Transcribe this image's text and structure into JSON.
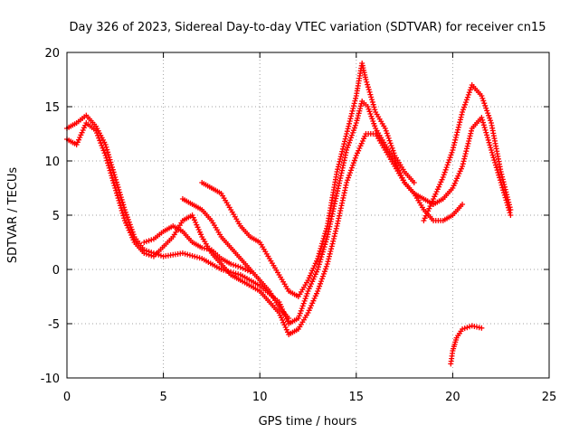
{
  "chart_data": {
    "type": "scatter",
    "title": "Day 326 of 2023, Sidereal Day-to-day VTEC variation (SDTVAR) for receiver cn15",
    "xlabel": "GPS time / hours",
    "ylabel": "SDTVAR / TECUs",
    "xlim": [
      0,
      25
    ],
    "ylim": [
      -10,
      20
    ],
    "xticks": [
      "0",
      "5",
      "10",
      "15",
      "20",
      "25"
    ],
    "yticks": [
      "-10",
      "-5",
      "0",
      "5",
      "10",
      "15",
      "20"
    ],
    "grid": true,
    "marker": "plus",
    "marker_color": "#ff0000",
    "series": [
      {
        "name": "trace-1",
        "points": [
          [
            0.0,
            13.0
          ],
          [
            0.5,
            13.5
          ],
          [
            1.0,
            14.2
          ],
          [
            1.5,
            13.2
          ],
          [
            2.0,
            11.5
          ],
          [
            2.5,
            8.5
          ],
          [
            3.0,
            5.5
          ],
          [
            3.5,
            3.0
          ],
          [
            4.0,
            1.8
          ],
          [
            4.5,
            1.5
          ],
          [
            5.0,
            1.2
          ],
          [
            6.0,
            1.5
          ],
          [
            7.0,
            1.0
          ],
          [
            8.0,
            0.0
          ],
          [
            9.0,
            -0.5
          ],
          [
            10.0,
            -1.5
          ],
          [
            11.0,
            -3.0
          ],
          [
            11.5,
            -5.0
          ],
          [
            12.0,
            -4.5
          ],
          [
            12.5,
            -2.0
          ],
          [
            13.0,
            0.0
          ],
          [
            13.5,
            3.0
          ],
          [
            14.0,
            7.0
          ],
          [
            14.5,
            11.0
          ],
          [
            15.0,
            13.5
          ],
          [
            15.3,
            15.5
          ],
          [
            15.6,
            15.0
          ],
          [
            16.0,
            13.0
          ],
          [
            16.5,
            11.5
          ],
          [
            17.0,
            10.0
          ],
          [
            17.5,
            8.0
          ],
          [
            18.0,
            7.0
          ],
          [
            18.5,
            6.5
          ],
          [
            19.0,
            6.0
          ],
          [
            19.5,
            6.5
          ],
          [
            20.0,
            7.5
          ],
          [
            20.5,
            9.5
          ],
          [
            21.0,
            13.0
          ],
          [
            21.5,
            14.0
          ],
          [
            22.0,
            11.0
          ],
          [
            22.5,
            8.0
          ],
          [
            23.0,
            5.0
          ]
        ]
      },
      {
        "name": "trace-2",
        "points": [
          [
            0.0,
            12.0
          ],
          [
            0.5,
            11.5
          ],
          [
            1.0,
            13.5
          ],
          [
            1.5,
            12.8
          ],
          [
            2.0,
            10.5
          ],
          [
            2.5,
            7.5
          ],
          [
            3.0,
            4.5
          ],
          [
            3.5,
            2.5
          ],
          [
            4.0,
            1.5
          ],
          [
            4.5,
            1.2
          ],
          [
            5.5,
            3.0
          ],
          [
            6.0,
            4.5
          ],
          [
            6.5,
            5.0
          ],
          [
            7.0,
            3.0
          ],
          [
            7.5,
            1.5
          ],
          [
            8.0,
            0.5
          ],
          [
            8.5,
            -0.5
          ],
          [
            9.0,
            -1.0
          ],
          [
            10.0,
            -2.0
          ],
          [
            10.5,
            -3.0
          ],
          [
            11.0,
            -4.0
          ],
          [
            11.5,
            -6.0
          ],
          [
            12.0,
            -5.5
          ],
          [
            12.5,
            -4.0
          ],
          [
            13.0,
            -2.0
          ],
          [
            13.5,
            0.5
          ],
          [
            14.0,
            4.0
          ],
          [
            14.5,
            8.0
          ],
          [
            15.0,
            10.5
          ],
          [
            15.5,
            12.5
          ],
          [
            16.0,
            12.5
          ],
          [
            16.5,
            11.0
          ],
          [
            17.0,
            9.5
          ],
          [
            17.5,
            8.0
          ],
          [
            18.0,
            7.0
          ],
          [
            18.5,
            5.5
          ],
          [
            19.0,
            4.5
          ],
          [
            19.5,
            4.5
          ],
          [
            20.0,
            5.0
          ],
          [
            20.5,
            6.0
          ]
        ]
      },
      {
        "name": "trace-3",
        "points": [
          [
            7.0,
            8.0
          ],
          [
            7.5,
            7.5
          ],
          [
            8.0,
            7.0
          ],
          [
            8.5,
            5.5
          ],
          [
            9.0,
            4.0
          ],
          [
            9.5,
            3.0
          ],
          [
            10.0,
            2.5
          ],
          [
            10.5,
            1.0
          ],
          [
            11.0,
            -0.5
          ],
          [
            11.5,
            -2.0
          ],
          [
            12.0,
            -2.5
          ],
          [
            12.5,
            -1.0
          ],
          [
            13.0,
            1.0
          ],
          [
            13.5,
            4.0
          ],
          [
            14.0,
            9.0
          ],
          [
            14.5,
            12.5
          ],
          [
            15.0,
            16.0
          ],
          [
            15.3,
            19.0
          ],
          [
            15.5,
            17.5
          ],
          [
            16.0,
            14.5
          ],
          [
            16.5,
            13.0
          ],
          [
            17.0,
            10.5
          ],
          [
            17.5,
            9.0
          ],
          [
            18.0,
            8.0
          ]
        ]
      },
      {
        "name": "trace-4",
        "points": [
          [
            6.0,
            6.5
          ],
          [
            6.5,
            6.0
          ],
          [
            7.0,
            5.5
          ],
          [
            7.5,
            4.5
          ],
          [
            8.0,
            3.0
          ],
          [
            8.5,
            2.0
          ],
          [
            9.0,
            1.0
          ],
          [
            9.5,
            0.0
          ],
          [
            10.0,
            -1.0
          ],
          [
            10.5,
            -2.0
          ],
          [
            11.0,
            -3.5
          ],
          [
            11.5,
            -4.5
          ]
        ]
      },
      {
        "name": "trace-5",
        "points": [
          [
            18.5,
            4.5
          ],
          [
            19.0,
            6.5
          ],
          [
            19.5,
            8.5
          ],
          [
            20.0,
            11.0
          ],
          [
            20.5,
            14.5
          ],
          [
            21.0,
            17.0
          ],
          [
            21.5,
            16.0
          ],
          [
            22.0,
            13.5
          ],
          [
            22.5,
            9.0
          ],
          [
            23.0,
            5.5
          ]
        ]
      },
      {
        "name": "trace-6",
        "points": [
          [
            19.9,
            -8.7
          ],
          [
            20.0,
            -7.5
          ],
          [
            20.2,
            -6.3
          ],
          [
            20.5,
            -5.5
          ],
          [
            21.0,
            -5.2
          ],
          [
            21.5,
            -5.4
          ]
        ]
      },
      {
        "name": "trace-7",
        "points": [
          [
            4.0,
            2.5
          ],
          [
            4.5,
            2.8
          ],
          [
            5.0,
            3.5
          ],
          [
            5.5,
            4.0
          ],
          [
            6.0,
            3.5
          ],
          [
            6.5,
            2.5
          ],
          [
            7.0,
            2.0
          ],
          [
            7.5,
            1.8
          ],
          [
            8.0,
            1.0
          ],
          [
            8.5,
            0.5
          ],
          [
            9.0,
            0.2
          ],
          [
            9.5,
            -0.2
          ]
        ]
      }
    ]
  }
}
